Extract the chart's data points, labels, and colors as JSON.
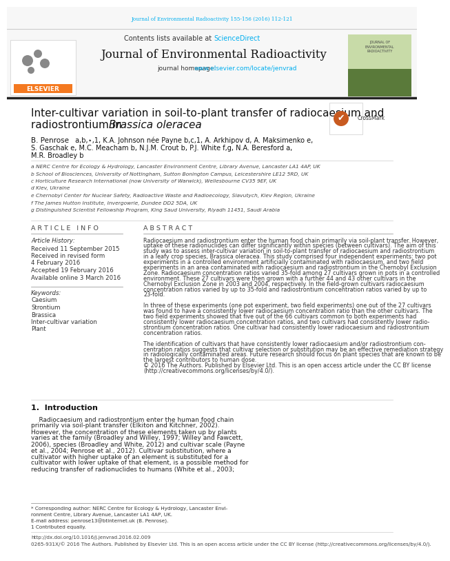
{
  "journal_ref": "Journal of Environmental Radioactivity 155-156 (2016) 112-121",
  "contents_text": "Contents lists available at",
  "sciencedirect_text": "ScienceDirect",
  "journal_title": "Journal of Environmental Radioactivity",
  "journal_homepage": "journal homepage: ",
  "journal_url": "www.elsevier.com/locate/jenvrad",
  "paper_title_line1": "Inter-cultivar variation in soil-to-plant transfer of radiocaesium and",
  "paper_title_line2": "radiostrontium in ",
  "paper_title_italic": "Brassica oleracea",
  "authors_line1a": "B. Penrose",
  "authors_line1b": " a,b,⋆,1, K.A. Johnson née Payne b,c,1, A. Arkhipov d, A. Maksimenko e,",
  "authors_line2": "S. Gaschak e, M.C. Meacham b, N.J.M. Crout b, P.J. White f,g, N.A. Beresford a,",
  "authors_line3": "M.R. Broadley b",
  "affil_a": "a NERC Centre for Ecology & Hydrology, Lancaster Environment Centre, Library Avenue, Lancaster LA1 4AP, UK",
  "affil_b": "b School of Biosciences, University of Nottingham, Sutton Bonington Campus, Leicestershire LE12 5RD, UK",
  "affil_c": "c Horticulture Research International (now University of Warwick), Wellesbourne CV35 9EF, UK",
  "affil_d": "d Kiev, Ukraine",
  "affil_e": "e Chernobyl Center for Nuclear Safety, Radioactive Waste and Radioecology, Slavutych, Kiev Region, Ukraine",
  "affil_f": "f The James Hutton Institute, Invergowrie, Dundee DD2 5DA, UK",
  "affil_g": "g Distinguished Scientist Fellowship Program, King Saud University, Riyadh 11451, Saudi Arabia",
  "article_info_header": "A R T I C L E   I N F O",
  "article_history": "Article History:",
  "received": "Received 11 September 2015",
  "received_revised": "Received in revised form",
  "revised_date": "4 February 2016",
  "accepted": "Accepted 19 February 2016",
  "available": "Available online 3 March 2016",
  "keywords_header": "Keywords:",
  "keyword1": "Caesium",
  "keyword2": "Strontium",
  "keyword3": "Brassica",
  "keyword4": "Inter-cultivar variation",
  "keyword5": "Plant",
  "abstract_header": "A B S T R A C T",
  "abstract_lines": [
    "Radiocaesium and radiostrontium enter the human food chain primarily via soil-plant transfer. However,",
    "uptake of these radionuclides can differ significantly within species (between cultivars). The aim of this",
    "study was to assess inter-cultivar variation in soil-to-plant transfer of radiocaesium and radiostrontium",
    "in a leafy crop species, Brassica oleracea. This study comprised four independent experiments: two pot",
    "experiments in a controlled environment artificially contaminated with radiocaesium, and two field",
    "experiments in an area contaminated with radiocaesium and radiostrontium in the Chernobyl Exclusion",
    "Zone. Radiocaesium concentration ratios varied 35-fold among 27 cultivars grown in pots in a controlled",
    "environment. These 27 cultivars were then grown with a further 44 and 43 other cultivars in the",
    "Chernobyl Exclusion Zone in 2003 and 2004, respectively. In the field-grown cultivars radiocaesium",
    "concentration ratios varied by up to 35-fold and radiostrontium concentration ratios varied by up to",
    "23-fold.",
    "",
    "In three of these experiments (one pot experiment, two field experiments) one out of the 27 cultivars",
    "was found to have a consistently lower radiocaesium concentration ratio than the other cultivars. The",
    "two field experiments showed that five out of the 66 cultivars common to both experiments had",
    "consistently lower radiocaesium concentration ratios, and two cultivars had consistently lower radio-",
    "strontium concentration ratios. One cultivar had consistently lower radiocaesium and radiostrontium",
    "concentration ratios.",
    "",
    "The identification of cultivars that have consistently lower radiocaesium and/or radiostrontium con-",
    "centration ratios suggests that cultivar selection or substitution may be an effective remediation strategy",
    "in radiologically contaminated areas. Future research should focus on plant species that are known to be",
    "the largest contributors to human dose.",
    "© 2016 The Authors. Published by Elsevier Ltd. This is an open access article under the CC BY license",
    "(http://creativecommons.org/licenses/by/4.0/)."
  ],
  "intro_header": "1.  Introduction",
  "intro_lines": [
    "    Radiocaesium and radiostrontium enter the human food chain",
    "primarily via soil-plant transfer (Elkiton and Kitchner, 2002).",
    "However, the concentration of these elements taken up by plants",
    "varies at the family (Broadley and Willey, 1997; Willey and Fawcett,",
    "2006), species (Broadley and White, 2012) and cultivar scale (Payne",
    "et al., 2004; Penrose et al., 2012). Cultivar substitution, where a",
    "cultivator with higher uptake of an element is substituted for a",
    "cultivator with lower uptake of that element, is a possible method for",
    "reducing transfer of radionuclides to humans (White et al., 2003;"
  ],
  "footnote1": "* Corresponding author: NERC Centre for Ecology & Hydrology, Lancaster Envi-",
  "footnote2": "ronment Centre, Library Avenue, Lancaster LA1 4AP, UK.",
  "footnote3": "E-mail address: penrose13@btinternet.uk (B. Penrose).",
  "footnote4": "1 Contributed equally.",
  "footer1": "http://dx.doi.org/10.1016/j.jenvrad.2016.02.009",
  "footer2": "0265-931X/© 2016 The Authors. Published by Elsevier Ltd. This is an open access article under the CC BY license (http://creativecommons.org/licenses/by/4.0/).",
  "background_color": "#ffffff",
  "elsevier_orange": "#f47920",
  "link_color": "#00aeef",
  "dark_line": "#333333",
  "light_line": "#bbbbbb"
}
